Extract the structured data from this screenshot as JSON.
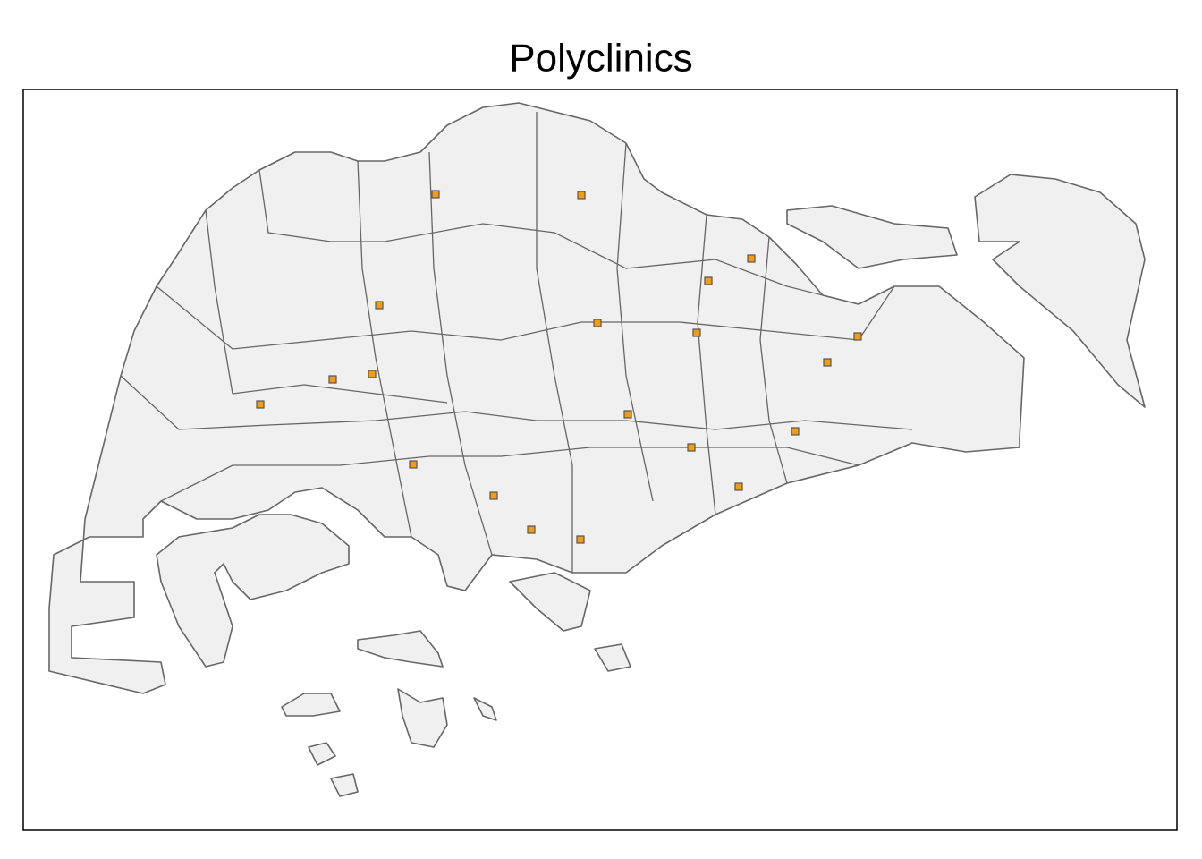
{
  "title": "Polyclinics"
}
